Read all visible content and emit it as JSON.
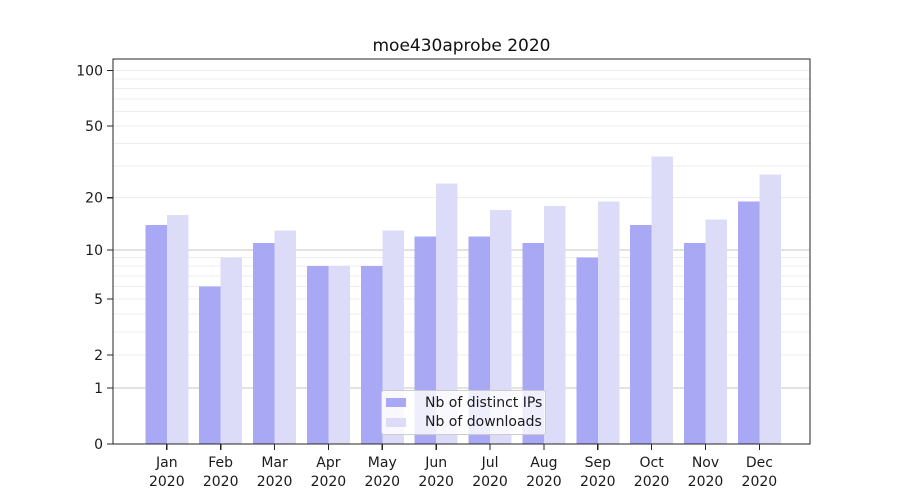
{
  "chart_data": {
    "type": "bar",
    "title": "moe430aprobe 2020",
    "categories": [
      "Jan",
      "Feb",
      "Mar",
      "Apr",
      "May",
      "Jun",
      "Jul",
      "Aug",
      "Sep",
      "Oct",
      "Nov",
      "Dec"
    ],
    "x_year_label": "2020",
    "series": [
      {
        "name": "Nb of distinct IPs",
        "color": "#a8a8f5",
        "values": [
          14,
          6,
          11,
          8,
          8,
          12,
          12,
          11,
          9,
          14,
          11,
          19
        ]
      },
      {
        "name": "Nb of downloads",
        "color": "#dcdcf9",
        "values": [
          16,
          9,
          13,
          8,
          13,
          24,
          17,
          18,
          19,
          34,
          15,
          27
        ]
      }
    ],
    "yscale": "symlog-log1p",
    "yticks": [
      0,
      1,
      2,
      5,
      10,
      20,
      50,
      100
    ],
    "gridline_values": [
      1,
      2,
      3,
      4,
      5,
      6,
      7,
      8,
      9,
      10,
      20,
      30,
      40,
      50,
      60,
      70,
      80,
      90,
      100
    ],
    "ylim": [
      0,
      119
    ],
    "grid": "on",
    "legend_position": "inside-bottom-center",
    "colors": {
      "grid_major": "#c6c6c6",
      "grid_minor": "#ededed",
      "axis": "#262626",
      "text": "#1a1a1a",
      "background": "#ffffff"
    }
  }
}
